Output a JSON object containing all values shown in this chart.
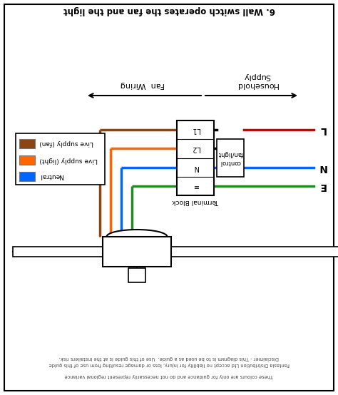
{
  "title_top": "6. Wall switch operates the fan and the light",
  "label_household": "Household",
  "label_supply": "Supply",
  "label_fan_wiring": "Fan  Wiring",
  "label_terminal": "Terminal Block",
  "label_control": "control\nfan/light",
  "supply_labels": [
    "L",
    "N",
    "E"
  ],
  "terminal_labels": [
    "L1",
    "L2",
    "N",
    "≡"
  ],
  "legend_items": [
    {
      "label": "Live supply (fan)",
      "color": "#8B4513"
    },
    {
      "label": "Live supply (light)",
      "color": "#FF6600"
    },
    {
      "label": "Neutral",
      "color": "#0066FF"
    }
  ],
  "wire_colors": {
    "brown": "#8B4513",
    "orange": "#FF6600",
    "blue": "#0066FF",
    "green": "#228B22",
    "black": "#000000",
    "red": "#CC0000"
  },
  "disclaimer_lines": [
    "Disclaimer - This diagram is to be used as a guide.  Use of this guide is at the installers risk.",
    "Fantasia Distribution Ltd accept no liability for injury, loss or damage resulting from use of this guide",
    "These colours are only for guidance and do not necessarily represent regional variance"
  ],
  "bg_color": "#FFFFFF",
  "border_color": "#000000"
}
